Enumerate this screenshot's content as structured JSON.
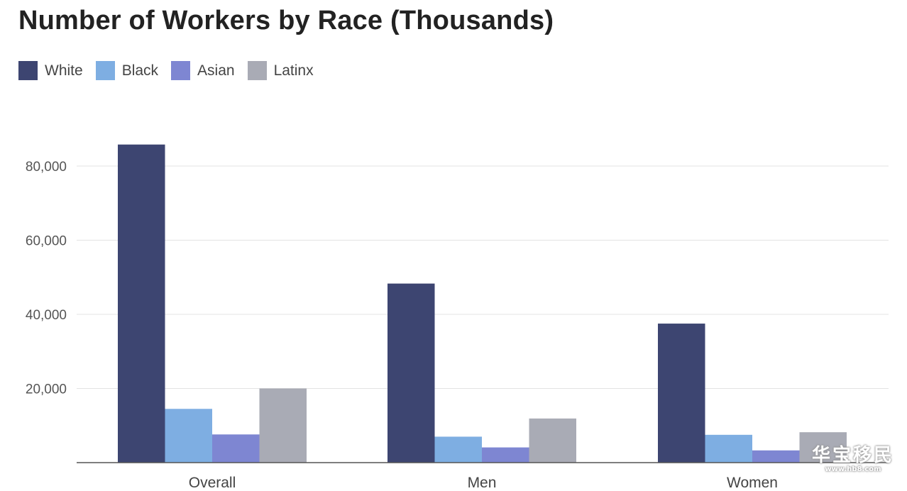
{
  "chart_data": {
    "type": "bar",
    "title": "Number of Workers by Race (Thousands)",
    "categories": [
      "Overall",
      "Men",
      "Women"
    ],
    "series": [
      {
        "name": "White",
        "color": "#3d4571",
        "values": [
          85800,
          48300,
          37500
        ]
      },
      {
        "name": "Black",
        "color": "#7eaee2",
        "values": [
          14500,
          7000,
          7500
        ]
      },
      {
        "name": "Asian",
        "color": "#7e86d2",
        "values": [
          7600,
          4100,
          3300
        ]
      },
      {
        "name": "Latinx",
        "color": "#a9abb5",
        "values": [
          20000,
          11900,
          8200
        ]
      }
    ],
    "ylim": [
      0,
      90000
    ],
    "yticks": [
      20000,
      40000,
      60000,
      80000
    ],
    "ytick_labels": [
      "20,000",
      "40,000",
      "60,000",
      "80,000"
    ],
    "grid": true,
    "legend_position": "top-left"
  },
  "watermark": {
    "main": "华宝移民",
    "sub": "www.hb8.com"
  }
}
